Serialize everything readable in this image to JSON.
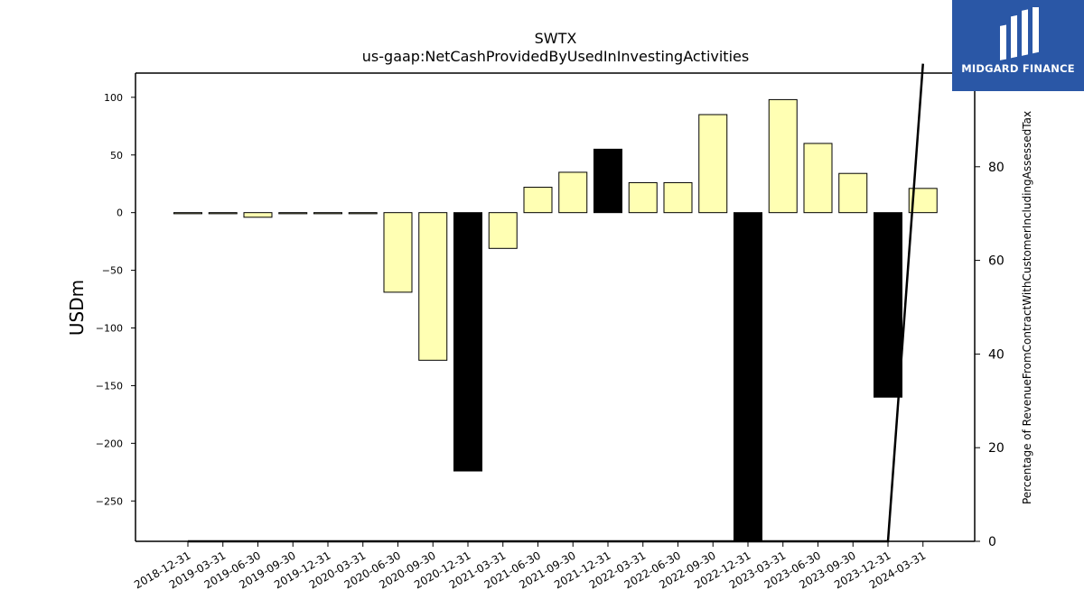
{
  "chart_data": {
    "type": "bar",
    "title": "SWTX",
    "subtitle": "us-gaap:NetCashProvidedByUsedInInvestingActivities",
    "ylabel": "USDm",
    "y2label": "Percentage of RevenueFromContractWithCustomerIncludingAssessedTax",
    "ylim": [
      -285,
      121
    ],
    "y2lim": [
      0,
      100
    ],
    "yticks": [
      100,
      50,
      0,
      -50,
      -100,
      -150,
      -200,
      -250
    ],
    "y2ticks": [
      0,
      20,
      40,
      60,
      80
    ],
    "categories": [
      "2018-12-31",
      "2019-03-31",
      "2019-06-30",
      "2019-09-30",
      "2019-12-31",
      "2020-03-31",
      "2020-06-30",
      "2020-09-30",
      "2020-12-31",
      "2021-03-31",
      "2021-06-30",
      "2021-09-30",
      "2021-12-31",
      "2022-03-31",
      "2022-06-30",
      "2022-09-30",
      "2022-12-31",
      "2023-03-31",
      "2023-06-30",
      "2023-09-30",
      "2023-12-31",
      "2024-03-31"
    ],
    "series": [
      {
        "values": [
          -0.8,
          -0.8,
          -4,
          -0.5,
          -0.5,
          -0.8,
          -69,
          -128,
          -224,
          -31,
          22,
          35,
          55,
          26,
          26,
          85,
          -285,
          98,
          60,
          34,
          -160,
          21
        ],
        "colors": [
          "#ffffb3",
          "#ffffb3",
          "#ffffb3",
          "#ffffb3",
          "#ffffb3",
          "#ffffb3",
          "#ffffb3",
          "#ffffb3",
          "#000000",
          "#ffffb3",
          "#ffffb3",
          "#ffffb3",
          "#000000",
          "#ffffb3",
          "#ffffb3",
          "#ffffb3",
          "#000000",
          "#ffffb3",
          "#ffffb3",
          "#ffffb3",
          "#000000",
          "#ffffb3"
        ]
      },
      {
        "type": "line",
        "axis": "right",
        "color": "#000000",
        "values": [
          0,
          0,
          0,
          0,
          0,
          0,
          0,
          0,
          0,
          0,
          0,
          0,
          0,
          0,
          0,
          0,
          0,
          0,
          0,
          0,
          0,
          102
        ]
      }
    ]
  },
  "logo": {
    "text": "MIDGARD FINANCE",
    "background": "#2a57a6"
  }
}
